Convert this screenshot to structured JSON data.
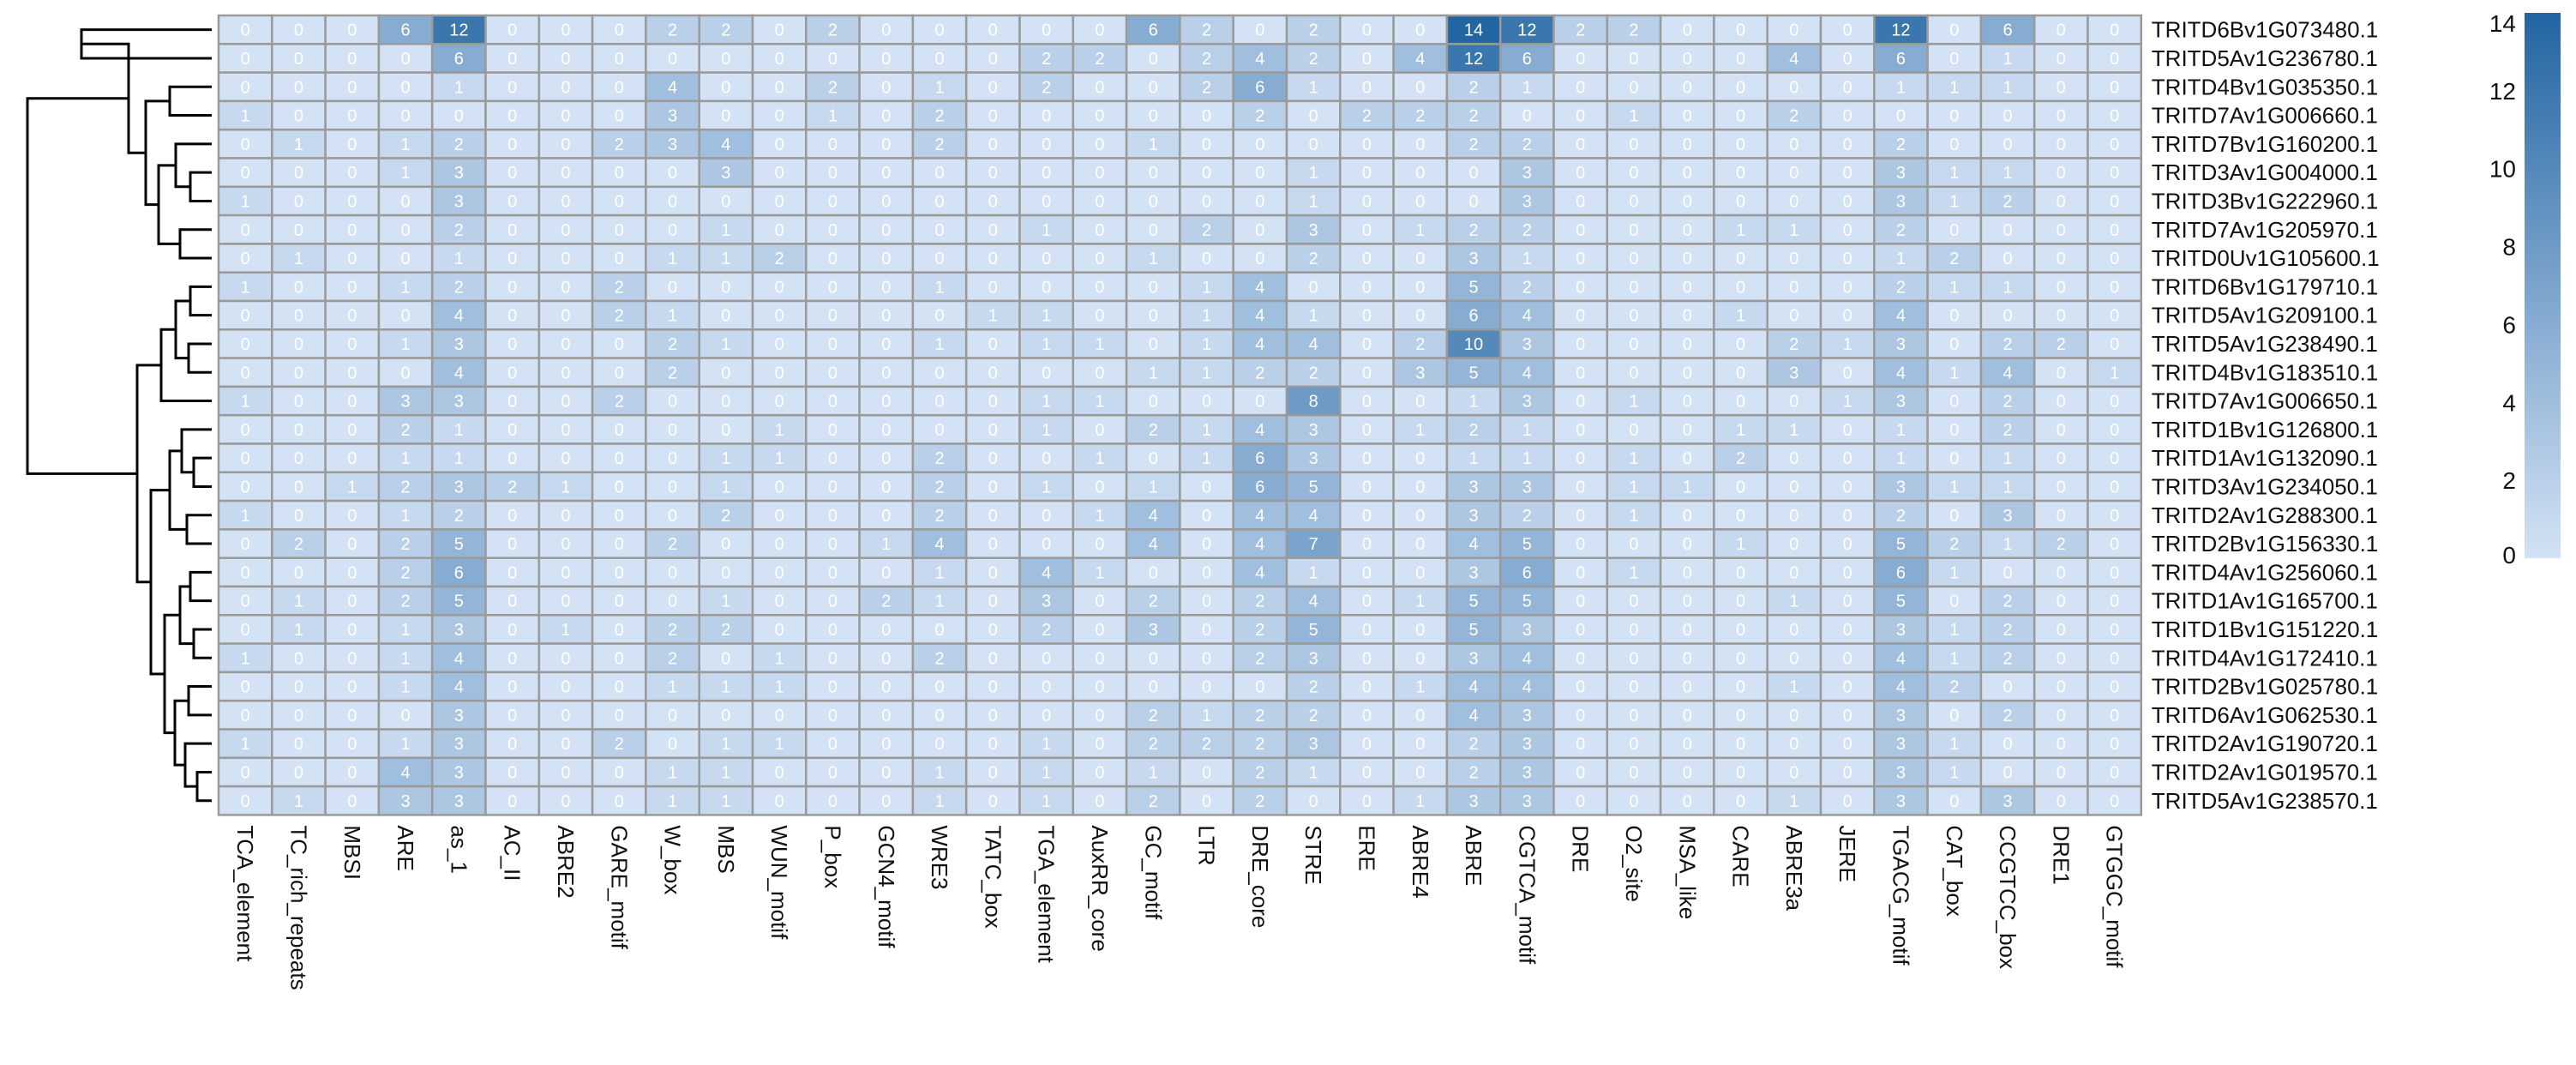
{
  "chart_data": {
    "type": "heatmap",
    "title": "",
    "xlabel": "",
    "ylabel": "",
    "rows": [
      "TRITD6Bv1G073480.1",
      "TRITD5Av1G236780.1",
      "TRITD4Bv1G035350.1",
      "TRITD7Av1G006660.1",
      "TRITD7Bv1G160200.1",
      "TRITD3Av1G004000.1",
      "TRITD3Bv1G222960.1",
      "TRITD7Av1G205970.1",
      "TRITD0Uv1G105600.1",
      "TRITD6Bv1G179710.1",
      "TRITD5Av1G209100.1",
      "TRITD5Av1G238490.1",
      "TRITD4Bv1G183510.1",
      "TRITD7Av1G006650.1",
      "TRITD1Bv1G126800.1",
      "TRITD1Av1G132090.1",
      "TRITD3Av1G234050.1",
      "TRITD2Av1G288300.1",
      "TRITD2Bv1G156330.1",
      "TRITD4Av1G256060.1",
      "TRITD1Av1G165700.1",
      "TRITD1Bv1G151220.1",
      "TRITD4Av1G172410.1",
      "TRITD2Bv1G025780.1",
      "TRITD6Av1G062530.1",
      "TRITD2Av1G190720.1",
      "TRITD2Av1G019570.1",
      "TRITD5Av1G238570.1"
    ],
    "columns": [
      "TCA_element",
      "TC_rich_repeats",
      "MBSI",
      "ARE",
      "as_1",
      "AC_II",
      "ABRE2",
      "GARE_motif",
      "W_box",
      "MBS",
      "WUN_motif",
      "P_box",
      "GCN4_motif",
      "WRE3",
      "TATC_box",
      "TGA_element",
      "AuxRR_core",
      "GC_motif",
      "LTR",
      "DRE_core",
      "STRE",
      "ERE",
      "ABRE4",
      "ABRE",
      "CGTCA_motif",
      "DRE",
      "O2_site",
      "MSA_like",
      "CARE",
      "ABRE3a",
      "JERE",
      "TGACG_motif",
      "CAT_box",
      "CCGTCC_box",
      "DRE1",
      "GTGGC_motif"
    ],
    "values": [
      [
        0,
        0,
        0,
        6,
        12,
        0,
        0,
        0,
        2,
        2,
        0,
        2,
        0,
        0,
        0,
        0,
        0,
        6,
        2,
        0,
        2,
        0,
        0,
        14,
        12,
        2,
        2,
        0,
        0,
        0,
        0,
        12,
        0,
        6,
        0,
        0
      ],
      [
        0,
        0,
        0,
        0,
        6,
        0,
        0,
        0,
        0,
        0,
        0,
        0,
        0,
        0,
        0,
        2,
        2,
        0,
        2,
        4,
        2,
        0,
        4,
        12,
        6,
        0,
        0,
        0,
        0,
        4,
        0,
        6,
        0,
        1,
        0,
        0
      ],
      [
        0,
        0,
        0,
        0,
        1,
        0,
        0,
        0,
        4,
        0,
        0,
        2,
        0,
        1,
        0,
        2,
        0,
        0,
        2,
        6,
        1,
        0,
        0,
        2,
        1,
        0,
        0,
        0,
        0,
        0,
        0,
        1,
        1,
        1,
        0,
        0
      ],
      [
        1,
        0,
        0,
        0,
        0,
        0,
        0,
        0,
        3,
        0,
        0,
        1,
        0,
        2,
        0,
        0,
        0,
        0,
        0,
        2,
        0,
        2,
        2,
        2,
        0,
        0,
        1,
        0,
        0,
        2,
        0,
        0,
        0,
        0,
        0,
        0
      ],
      [
        0,
        1,
        0,
        1,
        2,
        0,
        0,
        2,
        3,
        4,
        0,
        0,
        0,
        2,
        0,
        0,
        0,
        1,
        0,
        0,
        0,
        0,
        0,
        2,
        2,
        0,
        0,
        0,
        0,
        0,
        0,
        2,
        0,
        0,
        0,
        0
      ],
      [
        0,
        0,
        0,
        1,
        3,
        0,
        0,
        0,
        0,
        3,
        0,
        0,
        0,
        0,
        0,
        0,
        0,
        0,
        0,
        0,
        1,
        0,
        0,
        0,
        3,
        0,
        0,
        0,
        0,
        0,
        0,
        3,
        1,
        1,
        0,
        0
      ],
      [
        1,
        0,
        0,
        0,
        3,
        0,
        0,
        0,
        0,
        0,
        0,
        0,
        0,
        0,
        0,
        0,
        0,
        0,
        0,
        0,
        1,
        0,
        0,
        0,
        3,
        0,
        0,
        0,
        0,
        0,
        0,
        3,
        1,
        2,
        0,
        0
      ],
      [
        0,
        0,
        0,
        0,
        2,
        0,
        0,
        0,
        0,
        1,
        0,
        0,
        0,
        0,
        0,
        1,
        0,
        0,
        2,
        0,
        3,
        0,
        1,
        2,
        2,
        0,
        0,
        0,
        1,
        1,
        0,
        2,
        0,
        0,
        0,
        0
      ],
      [
        0,
        1,
        0,
        0,
        1,
        0,
        0,
        0,
        1,
        1,
        2,
        0,
        0,
        0,
        0,
        0,
        0,
        1,
        0,
        0,
        2,
        0,
        0,
        3,
        1,
        0,
        0,
        0,
        0,
        0,
        0,
        1,
        2,
        0,
        0,
        0
      ],
      [
        1,
        0,
        0,
        1,
        2,
        0,
        0,
        2,
        0,
        0,
        0,
        0,
        0,
        1,
        0,
        0,
        0,
        0,
        1,
        4,
        0,
        0,
        0,
        5,
        2,
        0,
        0,
        0,
        0,
        0,
        0,
        2,
        1,
        1,
        0,
        0
      ],
      [
        0,
        0,
        0,
        0,
        4,
        0,
        0,
        2,
        1,
        0,
        0,
        0,
        0,
        0,
        1,
        1,
        0,
        0,
        1,
        4,
        1,
        0,
        0,
        6,
        4,
        0,
        0,
        0,
        1,
        0,
        0,
        4,
        0,
        0,
        0,
        0
      ],
      [
        0,
        0,
        0,
        1,
        3,
        0,
        0,
        0,
        2,
        1,
        0,
        0,
        0,
        1,
        0,
        1,
        1,
        0,
        1,
        4,
        4,
        0,
        2,
        10,
        3,
        0,
        0,
        0,
        0,
        2,
        1,
        3,
        0,
        2,
        2,
        0
      ],
      [
        0,
        0,
        0,
        0,
        4,
        0,
        0,
        0,
        2,
        0,
        0,
        0,
        0,
        0,
        0,
        0,
        0,
        1,
        1,
        2,
        2,
        0,
        3,
        5,
        4,
        0,
        0,
        0,
        0,
        3,
        0,
        4,
        1,
        4,
        0,
        1
      ],
      [
        1,
        0,
        0,
        3,
        3,
        0,
        0,
        2,
        0,
        0,
        0,
        0,
        0,
        0,
        0,
        1,
        1,
        0,
        0,
        0,
        8,
        0,
        0,
        1,
        3,
        0,
        1,
        0,
        0,
        0,
        1,
        3,
        0,
        2,
        0,
        0
      ],
      [
        0,
        0,
        0,
        2,
        1,
        0,
        0,
        0,
        0,
        0,
        1,
        0,
        0,
        0,
        0,
        1,
        0,
        2,
        1,
        4,
        3,
        0,
        1,
        2,
        1,
        0,
        0,
        0,
        1,
        1,
        0,
        1,
        0,
        2,
        0,
        0
      ],
      [
        0,
        0,
        0,
        1,
        1,
        0,
        0,
        0,
        0,
        1,
        1,
        0,
        0,
        2,
        0,
        0,
        1,
        0,
        1,
        6,
        3,
        0,
        0,
        1,
        1,
        0,
        1,
        0,
        2,
        0,
        0,
        1,
        0,
        1,
        0,
        0
      ],
      [
        0,
        0,
        1,
        2,
        3,
        2,
        1,
        0,
        0,
        1,
        0,
        0,
        0,
        2,
        0,
        1,
        0,
        1,
        0,
        6,
        5,
        0,
        0,
        3,
        3,
        0,
        1,
        1,
        0,
        0,
        0,
        3,
        1,
        1,
        0,
        0
      ],
      [
        1,
        0,
        0,
        1,
        2,
        0,
        0,
        0,
        0,
        2,
        0,
        0,
        0,
        2,
        0,
        0,
        1,
        4,
        0,
        4,
        4,
        0,
        0,
        3,
        2,
        0,
        1,
        0,
        0,
        0,
        0,
        2,
        0,
        3,
        0,
        0
      ],
      [
        0,
        2,
        0,
        2,
        5,
        0,
        0,
        0,
        2,
        0,
        0,
        0,
        1,
        4,
        0,
        0,
        0,
        4,
        0,
        4,
        7,
        0,
        0,
        4,
        5,
        0,
        0,
        0,
        1,
        0,
        0,
        5,
        2,
        1,
        2,
        0
      ],
      [
        0,
        0,
        0,
        2,
        6,
        0,
        0,
        0,
        0,
        0,
        0,
        0,
        0,
        1,
        0,
        4,
        1,
        0,
        0,
        4,
        1,
        0,
        0,
        3,
        6,
        0,
        1,
        0,
        0,
        0,
        0,
        6,
        1,
        0,
        0,
        0
      ],
      [
        0,
        1,
        0,
        2,
        5,
        0,
        0,
        0,
        0,
        1,
        0,
        0,
        2,
        1,
        0,
        3,
        0,
        2,
        0,
        2,
        4,
        0,
        1,
        5,
        5,
        0,
        0,
        0,
        0,
        1,
        0,
        5,
        0,
        2,
        0,
        0
      ],
      [
        0,
        1,
        0,
        1,
        3,
        0,
        1,
        0,
        2,
        2,
        0,
        0,
        0,
        0,
        0,
        2,
        0,
        3,
        0,
        2,
        5,
        0,
        0,
        5,
        3,
        0,
        0,
        0,
        0,
        0,
        0,
        3,
        1,
        2,
        0,
        0
      ],
      [
        1,
        0,
        0,
        1,
        4,
        0,
        0,
        0,
        2,
        0,
        1,
        0,
        0,
        2,
        0,
        0,
        0,
        0,
        0,
        2,
        3,
        0,
        0,
        3,
        4,
        0,
        0,
        0,
        0,
        0,
        0,
        4,
        1,
        2,
        0,
        0
      ],
      [
        0,
        0,
        0,
        1,
        4,
        0,
        0,
        0,
        1,
        1,
        1,
        0,
        0,
        0,
        0,
        0,
        0,
        0,
        0,
        0,
        2,
        0,
        1,
        4,
        4,
        0,
        0,
        0,
        0,
        1,
        0,
        4,
        2,
        0,
        0,
        0
      ],
      [
        0,
        0,
        0,
        0,
        3,
        0,
        0,
        0,
        0,
        0,
        0,
        0,
        0,
        0,
        0,
        0,
        0,
        2,
        1,
        2,
        2,
        0,
        0,
        4,
        3,
        0,
        0,
        0,
        0,
        0,
        0,
        3,
        0,
        2,
        0,
        0
      ],
      [
        1,
        0,
        0,
        1,
        3,
        0,
        0,
        2,
        0,
        1,
        1,
        0,
        0,
        0,
        0,
        1,
        0,
        2,
        2,
        2,
        3,
        0,
        0,
        2,
        3,
        0,
        0,
        0,
        0,
        0,
        0,
        3,
        1,
        0,
        0,
        0
      ],
      [
        0,
        0,
        0,
        4,
        3,
        0,
        0,
        0,
        1,
        1,
        0,
        0,
        0,
        1,
        0,
        1,
        0,
        1,
        0,
        2,
        1,
        0,
        0,
        2,
        3,
        0,
        0,
        0,
        0,
        0,
        0,
        3,
        1,
        0,
        0,
        0
      ],
      [
        0,
        1,
        0,
        3,
        3,
        0,
        0,
        0,
        1,
        1,
        0,
        0,
        0,
        1,
        0,
        1,
        0,
        2,
        0,
        2,
        0,
        0,
        1,
        3,
        3,
        0,
        0,
        0,
        0,
        1,
        0,
        3,
        0,
        3,
        0,
        0
      ]
    ],
    "color_scale": {
      "min": 0,
      "max": 14,
      "low_color": "#d3e2f4",
      "high_color": "#2265a3"
    },
    "colorbar_ticks": [
      0,
      2,
      4,
      6,
      8,
      10,
      12,
      14
    ],
    "dendrogram": "rows"
  }
}
